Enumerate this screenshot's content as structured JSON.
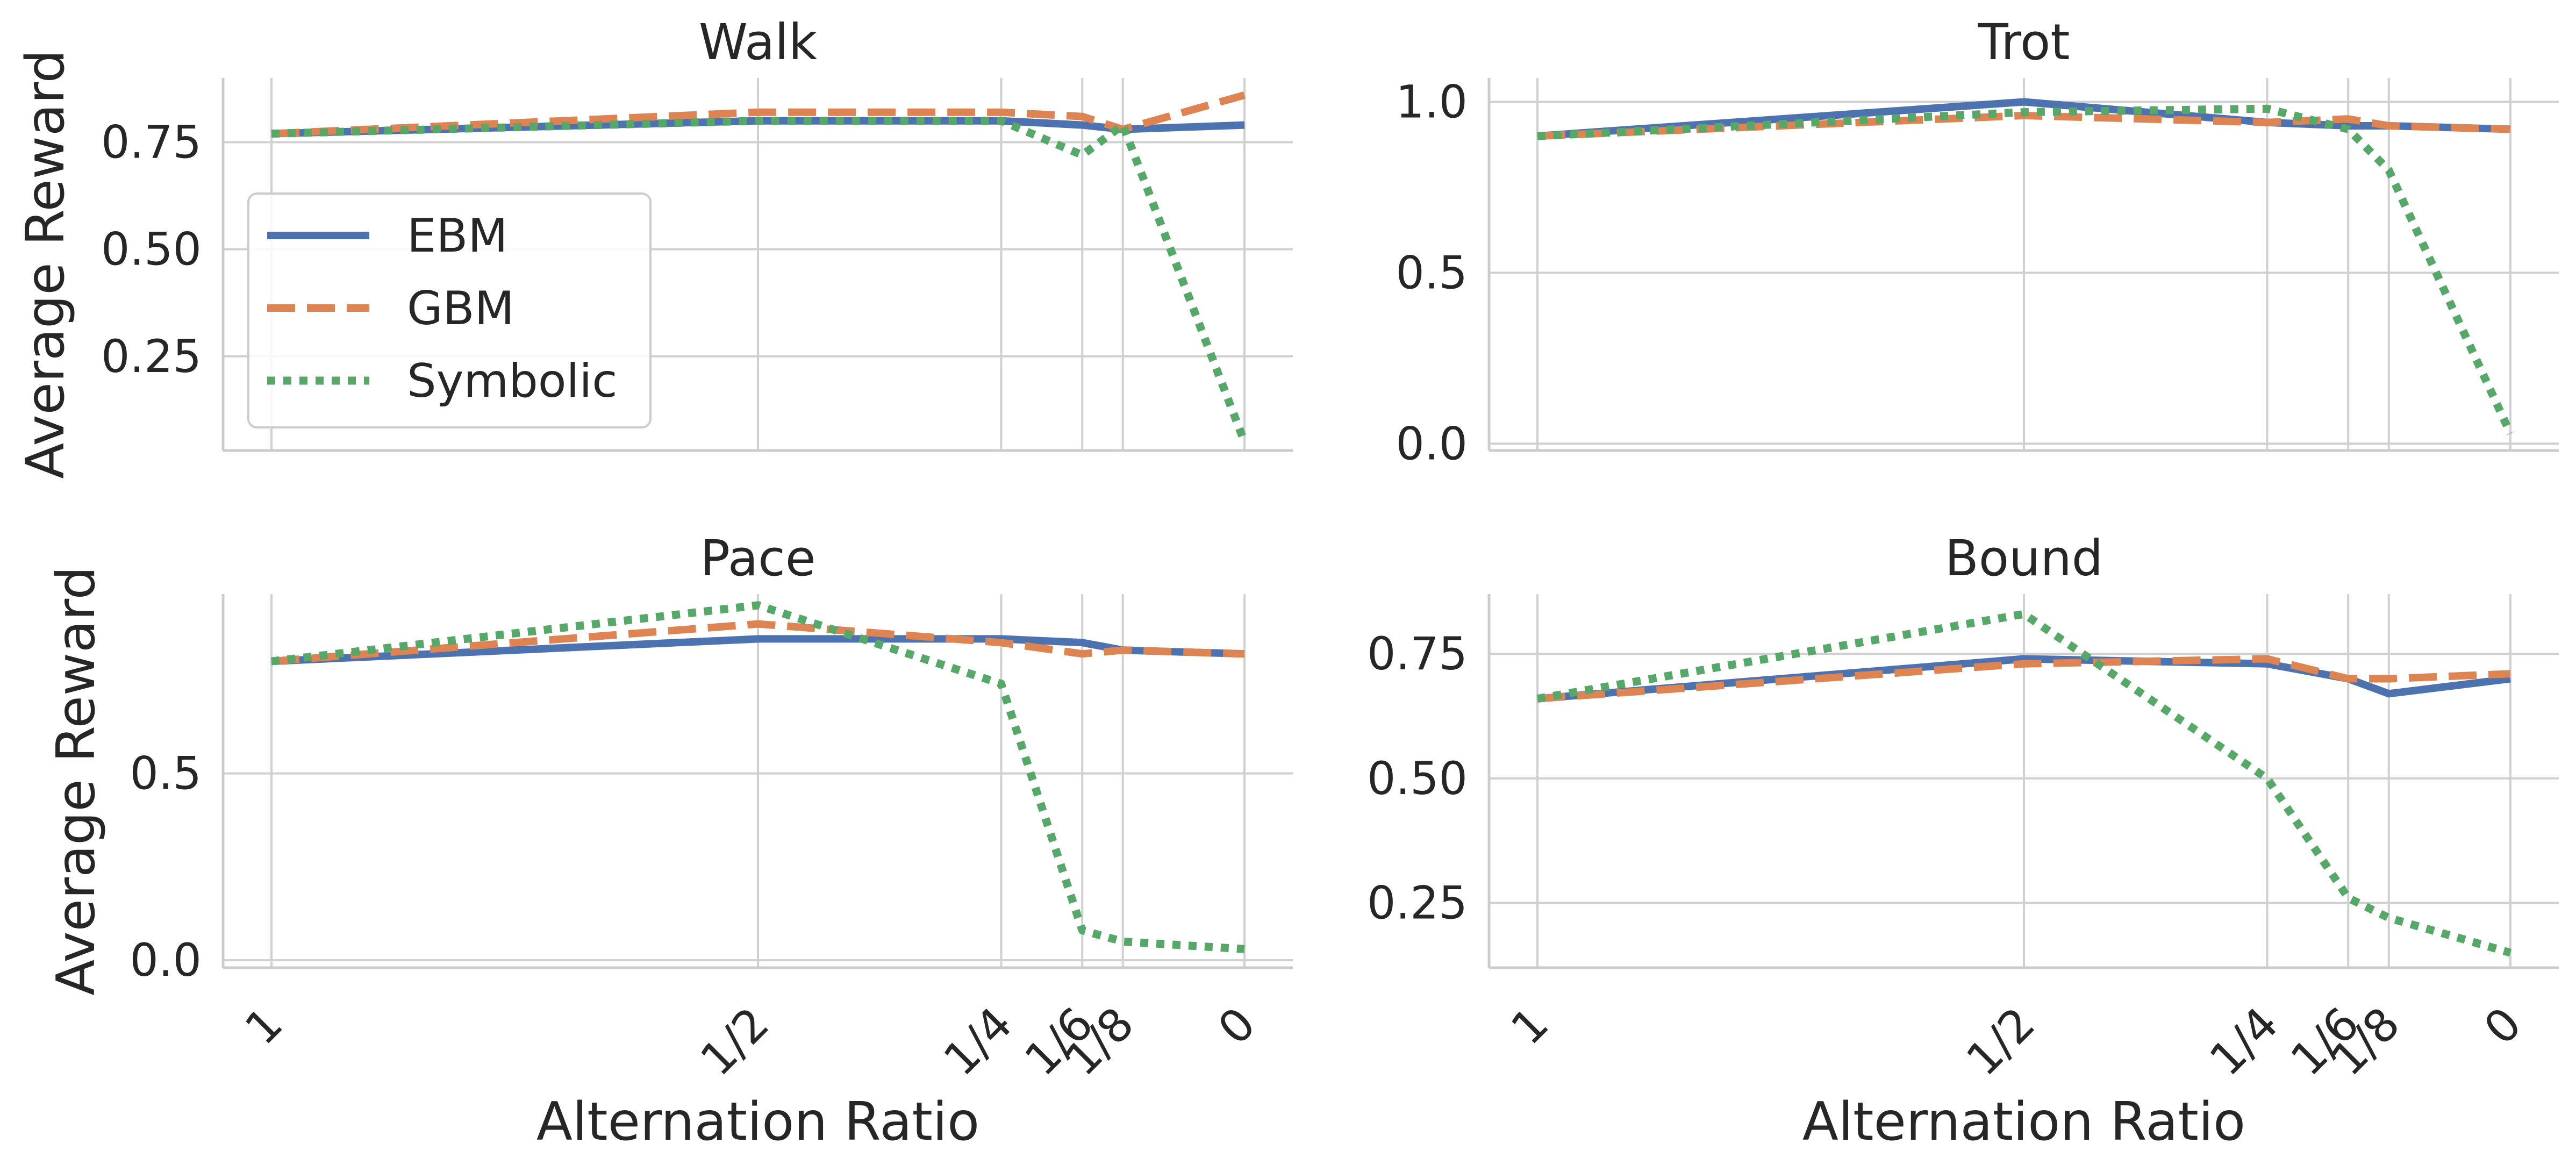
{
  "chart_data": {
    "type": "line",
    "xlabel": "Alternation Ratio",
    "ylabel": "Average Reward",
    "x_categories": [
      "1",
      "1/2",
      "1/4",
      "1/6",
      "1/8",
      "0"
    ],
    "x_values": [
      1,
      0.5,
      0.25,
      0.1667,
      0.125,
      0
    ],
    "legend": [
      "EBM",
      "GBM",
      "Symbolic"
    ],
    "legend_placement": "center-left (Walk panel)",
    "colors": {
      "EBM": "#4c72b0",
      "GBM": "#dd8452",
      "Symbolic": "#55a868"
    },
    "panels": [
      {
        "title": "Walk",
        "ylim": [
          0.03,
          0.9
        ],
        "yticks": [
          0.25,
          0.5,
          0.75
        ],
        "ytick_labels": [
          "0.25",
          "0.50",
          "0.75"
        ],
        "series": [
          {
            "name": "EBM",
            "values": [
              0.77,
              0.8,
              0.8,
              0.79,
              0.78,
              0.79
            ]
          },
          {
            "name": "GBM",
            "values": [
              0.77,
              0.82,
              0.82,
              0.81,
              0.78,
              0.86
            ]
          },
          {
            "name": "Symbolic",
            "values": [
              0.77,
              0.8,
              0.8,
              0.72,
              0.79,
              0.05
            ]
          }
        ]
      },
      {
        "title": "Trot",
        "ylim": [
          -0.02,
          1.07
        ],
        "yticks": [
          0.0,
          0.5,
          1.0
        ],
        "ytick_labels": [
          "0.0",
          "0.5",
          "1.0"
        ],
        "series": [
          {
            "name": "EBM",
            "values": [
              0.9,
              1.0,
              0.94,
              0.93,
              0.93,
              0.92
            ]
          },
          {
            "name": "GBM",
            "values": [
              0.9,
              0.96,
              0.94,
              0.95,
              0.93,
              0.92
            ]
          },
          {
            "name": "Symbolic",
            "values": [
              0.9,
              0.97,
              0.98,
              0.92,
              0.8,
              0.03
            ]
          }
        ]
      },
      {
        "title": "Pace",
        "ylim": [
          -0.02,
          0.98
        ],
        "yticks": [
          0.0,
          0.5
        ],
        "ytick_labels": [
          "0.0",
          "0.5"
        ],
        "series": [
          {
            "name": "EBM",
            "values": [
              0.8,
              0.86,
              0.86,
              0.85,
              0.83,
              0.82
            ]
          },
          {
            "name": "GBM",
            "values": [
              0.8,
              0.9,
              0.85,
              0.82,
              0.83,
              0.82
            ]
          },
          {
            "name": "Symbolic",
            "values": [
              0.8,
              0.95,
              0.74,
              0.08,
              0.05,
              0.03
            ]
          }
        ]
      },
      {
        "title": "Bound",
        "ylim": [
          0.12,
          0.87
        ],
        "yticks": [
          0.25,
          0.5,
          0.75
        ],
        "ytick_labels": [
          "0.25",
          "0.50",
          "0.75"
        ],
        "series": [
          {
            "name": "EBM",
            "values": [
              0.66,
              0.74,
              0.73,
              0.7,
              0.67,
              0.7
            ]
          },
          {
            "name": "GBM",
            "values": [
              0.66,
              0.73,
              0.74,
              0.7,
              0.7,
              0.71
            ]
          },
          {
            "name": "Symbolic",
            "values": [
              0.66,
              0.83,
              0.5,
              0.26,
              0.22,
              0.15
            ]
          }
        ]
      }
    ]
  }
}
